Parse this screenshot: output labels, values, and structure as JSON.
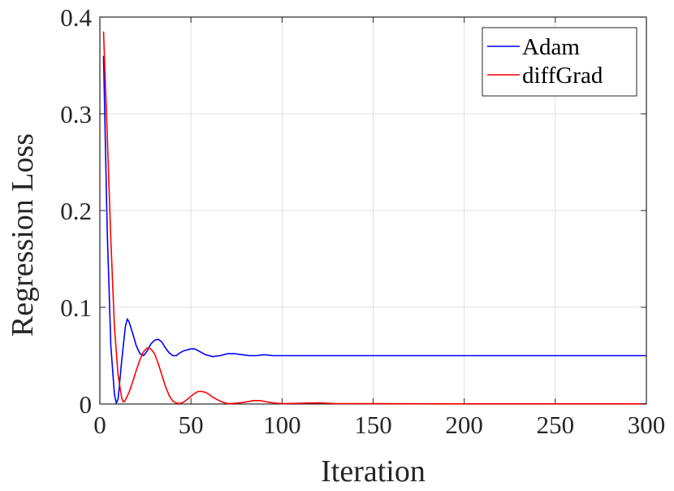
{
  "chart_data": {
    "type": "line",
    "xlabel": "Iteration",
    "ylabel": "Regression Loss",
    "xlim": [
      0,
      300
    ],
    "ylim": [
      0,
      0.4
    ],
    "xticks": [
      0,
      50,
      100,
      150,
      200,
      250,
      300
    ],
    "yticks": [
      0,
      0.1,
      0.2,
      0.3,
      0.4
    ],
    "xtick_labels": [
      "0",
      "50",
      "100",
      "150",
      "200",
      "250",
      "300"
    ],
    "ytick_labels": [
      "0",
      "0.1",
      "0.2",
      "0.3",
      "0.4"
    ],
    "grid": true,
    "legend_position": "top-right",
    "series": [
      {
        "name": "Adam",
        "color": "#0000ff",
        "x": [
          2,
          4,
          6,
          8,
          9,
          10,
          12,
          14,
          15,
          16,
          18,
          20,
          22,
          24,
          26,
          28,
          30,
          32,
          34,
          36,
          38,
          40,
          42,
          44,
          46,
          48,
          50,
          52,
          55,
          58,
          62,
          66,
          70,
          74,
          78,
          82,
          86,
          90,
          95,
          100,
          110,
          120,
          130,
          150,
          200,
          250,
          300
        ],
        "y": [
          0.36,
          0.18,
          0.06,
          0.01,
          0.001,
          0.005,
          0.045,
          0.08,
          0.088,
          0.085,
          0.073,
          0.06,
          0.052,
          0.05,
          0.055,
          0.062,
          0.066,
          0.067,
          0.064,
          0.058,
          0.053,
          0.05,
          0.05,
          0.053,
          0.055,
          0.056,
          0.057,
          0.057,
          0.054,
          0.051,
          0.049,
          0.05,
          0.052,
          0.052,
          0.051,
          0.05,
          0.05,
          0.051,
          0.05,
          0.05,
          0.05,
          0.05,
          0.05,
          0.05,
          0.05,
          0.05,
          0.05
        ]
      },
      {
        "name": "diffGrad",
        "color": "#ff0000",
        "x": [
          2,
          4,
          6,
          8,
          10,
          12,
          13,
          14,
          16,
          18,
          20,
          22,
          24,
          26,
          28,
          30,
          32,
          34,
          36,
          38,
          40,
          42,
          44,
          46,
          48,
          50,
          52,
          54,
          56,
          58,
          60,
          62,
          64,
          66,
          68,
          70,
          72,
          74,
          76,
          80,
          84,
          88,
          92,
          96,
          100,
          110,
          120,
          130,
          150,
          200,
          250,
          300
        ],
        "y": [
          0.385,
          0.28,
          0.17,
          0.08,
          0.03,
          0.006,
          0.002,
          0.004,
          0.012,
          0.023,
          0.035,
          0.046,
          0.054,
          0.058,
          0.057,
          0.052,
          0.042,
          0.03,
          0.018,
          0.009,
          0.003,
          0.001,
          0.0005,
          0.002,
          0.005,
          0.008,
          0.011,
          0.013,
          0.013,
          0.012,
          0.01,
          0.007,
          0.005,
          0.003,
          0.0015,
          0.0005,
          0.0005,
          0.0008,
          0.001,
          0.002,
          0.0035,
          0.0035,
          0.002,
          0.001,
          0.0003,
          0.0008,
          0.0012,
          0.0004,
          0.0003,
          0.0002,
          0.0002,
          0.0002
        ]
      }
    ]
  }
}
